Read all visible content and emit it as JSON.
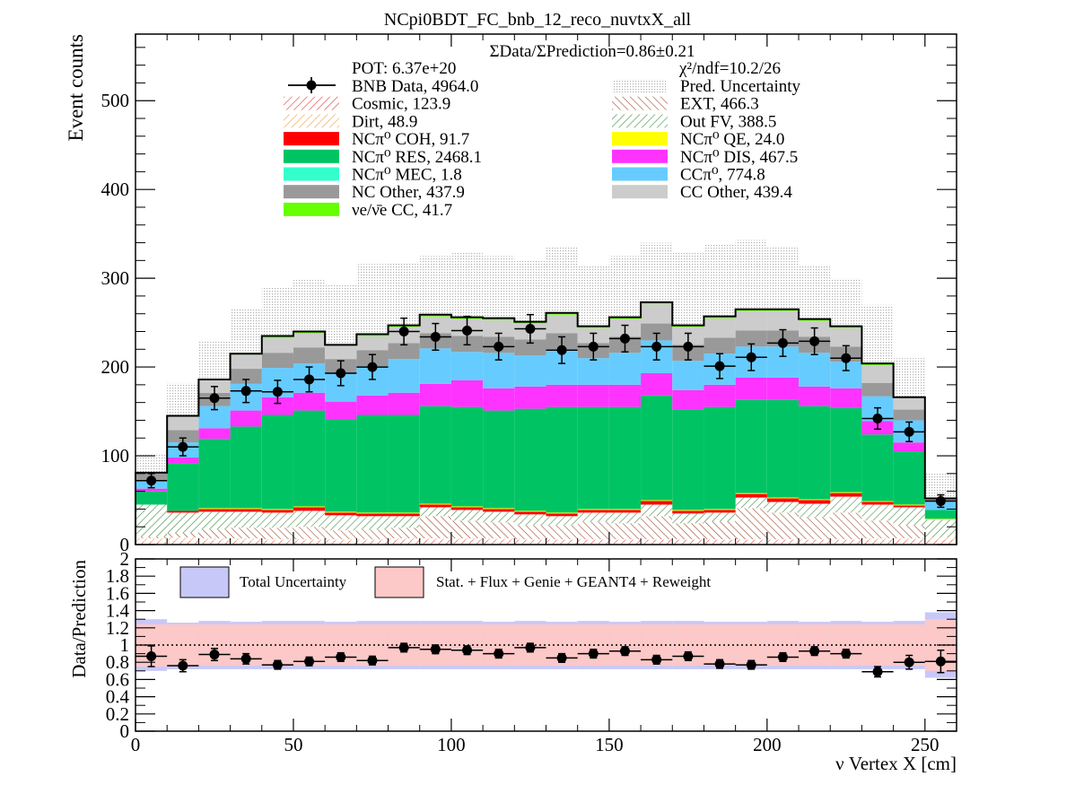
{
  "title": "NCpi0BDT_FC_bnb_12_reco_nuvtxX_all",
  "ratio_text": "ΣData/ΣPrediction=0.86±0.21",
  "pot_text": "POT: 6.37e+20",
  "chi2_text": "χ²/ndf=10.2/26",
  "chart_data": [
    {
      "type": "bar",
      "stacked": true,
      "ylabel": "Event counts",
      "xlim": [
        0,
        260
      ],
      "ylim": [
        0,
        575
      ],
      "x_ticks": [
        0,
        50,
        100,
        150,
        200,
        250
      ],
      "y_ticks": [
        0,
        100,
        200,
        300,
        400,
        500
      ],
      "bin_edges": [
        0,
        10,
        20,
        30,
        40,
        50,
        60,
        70,
        80,
        90,
        100,
        110,
        120,
        130,
        140,
        150,
        160,
        170,
        180,
        190,
        200,
        210,
        220,
        230,
        240,
        250,
        260
      ],
      "series": [
        {
          "name": "Cosmic",
          "legend": "Cosmic, 123.9",
          "color": "#e8403a",
          "pattern": "hatch-red",
          "values": [
            3,
            4,
            4,
            4,
            4,
            4,
            4,
            4,
            5,
            5,
            5,
            5,
            5,
            5,
            5,
            5,
            5,
            5,
            5,
            5,
            5,
            5,
            5,
            5,
            5,
            5
          ]
        },
        {
          "name": "Dirt",
          "legend": "Dirt, 48.9",
          "color": "#f2a24a",
          "pattern": "hatch-orange",
          "values": [
            4,
            4,
            3,
            3,
            2,
            2,
            2,
            2,
            2,
            2,
            2,
            2,
            1,
            1,
            1,
            1,
            1,
            1,
            1,
            1,
            1,
            1,
            1,
            2,
            2,
            3
          ]
        },
        {
          "name": "EXT",
          "legend": "EXT, 466.3",
          "color": "#9c4a2c",
          "pattern": "hatch-brown",
          "values": [
            2,
            5,
            10,
            12,
            13,
            14,
            10,
            11,
            12,
            25,
            20,
            18,
            16,
            16,
            20,
            18,
            26,
            18,
            20,
            35,
            30,
            25,
            30,
            20,
            15,
            0
          ]
        },
        {
          "name": "Out FV",
          "legend": "Out FV, 388.5",
          "color": "#3f8f3f",
          "pattern": "hatch-green",
          "values": [
            36,
            23,
            20,
            18,
            17,
            18,
            17,
            15,
            13,
            10,
            12,
            12,
            12,
            10,
            10,
            12,
            13,
            11,
            10,
            12,
            12,
            15,
            18,
            18,
            20,
            20
          ]
        },
        {
          "name": "NCπ0 COH",
          "legend": "NCπ⁰ COH,  91.7",
          "color": "#ff0000",
          "values": [
            0,
            2,
            3,
            3,
            3,
            4,
            3,
            3,
            3,
            3,
            3,
            3,
            3,
            3,
            3,
            3,
            4,
            3,
            3,
            4,
            4,
            4,
            4,
            3,
            2,
            0
          ]
        },
        {
          "name": "NCπ0 QE",
          "legend": "NCπ⁰ QE,  24.0",
          "color": "#ffff00",
          "values": [
            0,
            0,
            1,
            1,
            1,
            1,
            1,
            1,
            1,
            1,
            1,
            1,
            1,
            1,
            1,
            1,
            1,
            1,
            1,
            1,
            1,
            1,
            1,
            1,
            1,
            1
          ]
        },
        {
          "name": "NCπ0 RES",
          "legend": "NCπ⁰ RES,  2468.1",
          "color": "#00c464",
          "values": [
            15,
            53,
            78,
            92,
            106,
            108,
            104,
            110,
            110,
            110,
            112,
            110,
            115,
            119,
            115,
            115,
            118,
            113,
            115,
            105,
            110,
            105,
            95,
            75,
            60,
            10
          ]
        },
        {
          "name": "NCπ0 DIS",
          "legend": "NCπ⁰ DIS,  467.5",
          "color": "#ff33ff",
          "values": [
            3,
            7,
            12,
            18,
            20,
            20,
            20,
            22,
            25,
            25,
            30,
            25,
            25,
            25,
            25,
            25,
            25,
            22,
            25,
            25,
            25,
            22,
            22,
            15,
            10,
            0
          ]
        },
        {
          "name": "NCπ0 MEC",
          "legend": "NCπ⁰ MEC,  1.8",
          "color": "#33ffcc",
          "values": [
            0,
            0,
            0,
            0,
            0,
            0,
            0,
            0,
            0,
            0,
            0,
            0,
            0,
            0,
            0,
            0,
            0,
            0,
            0,
            0,
            0,
            0,
            0,
            0,
            0,
            0
          ]
        },
        {
          "name": "CCπ0",
          "legend": "CCπ⁰, 774.8",
          "color": "#66ccff",
          "values": [
            8,
            17,
            25,
            30,
            33,
            33,
            31,
            33,
            38,
            40,
            32,
            40,
            35,
            40,
            30,
            36,
            37,
            33,
            35,
            35,
            35,
            38,
            30,
            28,
            25,
            10
          ]
        },
        {
          "name": "NC Other",
          "legend": "NC Other, 437.9",
          "color": "#999999",
          "values": [
            9,
            14,
            15,
            17,
            17,
            18,
            17,
            18,
            18,
            17,
            18,
            18,
            18,
            18,
            17,
            18,
            19,
            18,
            18,
            18,
            18,
            18,
            17,
            15,
            12,
            2
          ]
        },
        {
          "name": "CC Other",
          "legend": "CC Other, 439.4",
          "color": "#cccccc",
          "values": [
            1,
            15,
            14,
            16,
            17,
            16,
            15,
            16,
            18,
            19,
            19,
            19,
            18,
            21,
            17,
            20,
            22,
            20,
            22,
            22,
            22,
            18,
            21,
            20,
            13,
            1
          ]
        },
        {
          "name": "νe/ν̄e CC",
          "legend": "νe/ν̄e CC, 41.7",
          "color": "#66ff00",
          "values": [
            0,
            1,
            1,
            1,
            2,
            2,
            1,
            2,
            2,
            2,
            2,
            2,
            2,
            2,
            2,
            2,
            2,
            2,
            2,
            2,
            2,
            2,
            2,
            2,
            1,
            0
          ]
        }
      ],
      "uncertainty": {
        "name": "Pred. Uncertainty",
        "legend": "Pred. Uncertainty",
        "color": "#bbbbbb",
        "upper": [
          103,
          182,
          230,
          266,
          290,
          298,
          292,
          316,
          318,
          325,
          330,
          325,
          320,
          335,
          315,
          325,
          340,
          330,
          338,
          343,
          335,
          315,
          300,
          270,
          210,
          80
        ]
      },
      "data": {
        "name": "BNB Data",
        "legend": "BNB Data, 4964.0",
        "x": [
          5,
          15,
          25,
          35,
          45,
          55,
          65,
          75,
          85,
          95,
          105,
          115,
          125,
          135,
          145,
          155,
          165,
          175,
          185,
          195,
          205,
          215,
          225,
          235,
          245,
          255
        ],
        "y": [
          72,
          110,
          165,
          173,
          172,
          186,
          193,
          200,
          240,
          234,
          241,
          223,
          243,
          219,
          223,
          232,
          223,
          223,
          201,
          211,
          227,
          229,
          210,
          142,
          127,
          49
        ],
        "err": [
          8,
          10,
          13,
          13,
          13,
          14,
          14,
          14,
          15,
          15,
          16,
          15,
          16,
          15,
          15,
          15,
          15,
          15,
          14,
          15,
          15,
          15,
          14,
          12,
          11,
          7
        ]
      }
    },
    {
      "type": "scatter",
      "xlabel": "ν Vertex X [cm]",
      "ylabel": "Data/Prediction",
      "xlim": [
        0,
        260
      ],
      "ylim": [
        0,
        2
      ],
      "x_ticks": [
        0,
        50,
        100,
        150,
        200,
        250
      ],
      "y_ticks": [
        0,
        0.2,
        0.4,
        0.6,
        0.8,
        1,
        1.2,
        1.4,
        1.6,
        1.8,
        2
      ],
      "y_tick_labels": [
        "0",
        "0.2",
        "0.4",
        "0.6",
        "0.8",
        "1",
        "1.2",
        "1.4",
        "1.6",
        "1.8",
        "2"
      ],
      "legend": {
        "total": "Total Uncertainty",
        "stat": "Stat. + Flux + Genie + GEANT4 + Reweight"
      },
      "total_band": {
        "lower": [
          0.7,
          0.72,
          0.72,
          0.72,
          0.72,
          0.72,
          0.72,
          0.72,
          0.72,
          0.72,
          0.72,
          0.72,
          0.72,
          0.72,
          0.72,
          0.72,
          0.72,
          0.72,
          0.72,
          0.72,
          0.72,
          0.72,
          0.72,
          0.72,
          0.72,
          0.62
        ],
        "upper": [
          1.3,
          1.26,
          1.28,
          1.27,
          1.28,
          1.28,
          1.27,
          1.28,
          1.28,
          1.28,
          1.28,
          1.27,
          1.28,
          1.27,
          1.28,
          1.27,
          1.28,
          1.28,
          1.27,
          1.27,
          1.28,
          1.27,
          1.28,
          1.27,
          1.28,
          1.38
        ]
      },
      "stat_band": {
        "lower": [
          0.75,
          0.76,
          0.76,
          0.76,
          0.76,
          0.76,
          0.76,
          0.76,
          0.76,
          0.76,
          0.76,
          0.76,
          0.76,
          0.76,
          0.76,
          0.76,
          0.76,
          0.76,
          0.76,
          0.76,
          0.76,
          0.76,
          0.76,
          0.76,
          0.76,
          0.7
        ],
        "upper": [
          1.24,
          1.24,
          1.24,
          1.24,
          1.24,
          1.24,
          1.24,
          1.24,
          1.24,
          1.24,
          1.24,
          1.24,
          1.24,
          1.24,
          1.24,
          1.24,
          1.24,
          1.24,
          1.24,
          1.24,
          1.24,
          1.24,
          1.24,
          1.24,
          1.24,
          1.3
        ]
      },
      "points": {
        "x": [
          5,
          15,
          25,
          35,
          45,
          55,
          65,
          75,
          85,
          95,
          105,
          115,
          125,
          135,
          145,
          155,
          165,
          175,
          185,
          195,
          205,
          215,
          225,
          235,
          245,
          255
        ],
        "y": [
          0.87,
          0.76,
          0.89,
          0.84,
          0.77,
          0.81,
          0.86,
          0.82,
          0.97,
          0.95,
          0.94,
          0.9,
          0.97,
          0.85,
          0.9,
          0.93,
          0.83,
          0.87,
          0.78,
          0.77,
          0.86,
          0.93,
          0.9,
          0.69,
          0.8,
          0.81
        ],
        "err": [
          0.12,
          0.07,
          0.07,
          0.06,
          0.05,
          0.05,
          0.05,
          0.05,
          0.05,
          0.05,
          0.05,
          0.05,
          0.05,
          0.05,
          0.05,
          0.05,
          0.05,
          0.05,
          0.05,
          0.05,
          0.05,
          0.05,
          0.05,
          0.06,
          0.08,
          0.13
        ]
      }
    }
  ]
}
